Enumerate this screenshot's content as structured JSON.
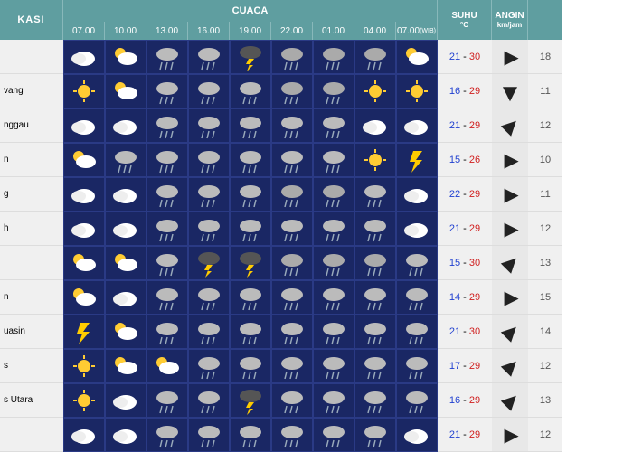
{
  "colors": {
    "header_bg": "#5f9ea0",
    "cell_bg": "#1a2764",
    "label_bg": "#f0f0f0",
    "temp_low": "#2040d0",
    "temp_high": "#d02020",
    "arrow": "#222222"
  },
  "headers": {
    "lokasi": "KASI",
    "cuaca": "CUACA",
    "suhu": "SUHU",
    "suhu_unit": "°C",
    "angin": "ANGIN",
    "angin_unit": "km/jam",
    "times": [
      "07.00",
      "10.00",
      "13.00",
      "16.00",
      "19.00",
      "22.00",
      "01.00",
      "04.00",
      "07.00"
    ],
    "wib": "(WIB)"
  },
  "weather_types": {
    "cloudy": {
      "bg": "day"
    },
    "partly": {
      "bg": "day"
    },
    "rain": {
      "bg": "day"
    },
    "heavy": {
      "bg": "day"
    },
    "storm": {
      "bg": "night"
    },
    "night_rain": {
      "bg": "night"
    },
    "night_cloud": {
      "bg": "night"
    },
    "sun": {
      "bg": "day"
    },
    "thunder": {
      "bg": "day"
    }
  },
  "rows": [
    {
      "label": "",
      "w": [
        "cloudy",
        "partly",
        "rain",
        "rain",
        "storm",
        "night_rain",
        "night_rain",
        "night_rain",
        "partly"
      ],
      "lo": 21,
      "hi": 30,
      "dir": 90,
      "spd": 18
    },
    {
      "label": "vang",
      "w": [
        "sun",
        "partly",
        "rain",
        "rain",
        "rain",
        "night_rain",
        "night_rain",
        "sun",
        "sun"
      ],
      "lo": 16,
      "hi": 29,
      "dir": 180,
      "spd": 11
    },
    {
      "label": "nggau",
      "w": [
        "cloudy",
        "cloudy",
        "rain",
        "rain",
        "rain",
        "rain",
        "rain",
        "cloudy",
        "cloudy"
      ],
      "lo": 21,
      "hi": 29,
      "dir": 45,
      "spd": 12
    },
    {
      "label": "n",
      "w": [
        "partly",
        "rain",
        "rain",
        "rain",
        "rain",
        "rain",
        "rain",
        "sun",
        "thunder"
      ],
      "lo": 15,
      "hi": 26,
      "dir": 90,
      "spd": 10
    },
    {
      "label": "g",
      "w": [
        "cloudy",
        "cloudy",
        "rain",
        "rain",
        "rain",
        "night_rain",
        "night_rain",
        "rain",
        "cloudy"
      ],
      "lo": 22,
      "hi": 29,
      "dir": 90,
      "spd": 11
    },
    {
      "label": "h",
      "w": [
        "cloudy",
        "cloudy",
        "rain",
        "rain",
        "rain",
        "rain",
        "rain",
        "rain",
        "cloudy"
      ],
      "lo": 21,
      "hi": 29,
      "dir": 90,
      "spd": 12
    },
    {
      "label": "",
      "w": [
        "partly",
        "partly",
        "rain",
        "storm",
        "storm",
        "night_rain",
        "night_rain",
        "night_rain",
        "rain"
      ],
      "lo": 15,
      "hi": 30,
      "dir": 45,
      "spd": 13
    },
    {
      "label": "n",
      "w": [
        "partly",
        "cloudy",
        "rain",
        "rain",
        "rain",
        "rain",
        "rain",
        "rain",
        "rain"
      ],
      "lo": 14,
      "hi": 29,
      "dir": 90,
      "spd": 15
    },
    {
      "label": "uasin",
      "w": [
        "thunder",
        "partly",
        "rain",
        "rain",
        "rain",
        "rain",
        "rain",
        "rain",
        "rain"
      ],
      "lo": 21,
      "hi": 30,
      "dir": 45,
      "spd": 14
    },
    {
      "label": "s",
      "w": [
        "sun",
        "partly",
        "partly",
        "rain",
        "rain",
        "rain",
        "rain",
        "rain",
        "rain"
      ],
      "lo": 17,
      "hi": 29,
      "dir": 45,
      "spd": 12
    },
    {
      "label": "s Utara",
      "w": [
        "sun",
        "cloudy",
        "rain",
        "rain",
        "storm",
        "rain",
        "rain",
        "rain",
        "rain"
      ],
      "lo": 16,
      "hi": 29,
      "dir": 45,
      "spd": 13
    },
    {
      "label": "",
      "w": [
        "cloudy",
        "cloudy",
        "rain",
        "rain",
        "rain",
        "rain",
        "rain",
        "rain",
        "cloudy"
      ],
      "lo": 21,
      "hi": 29,
      "dir": 90,
      "spd": 12
    }
  ]
}
